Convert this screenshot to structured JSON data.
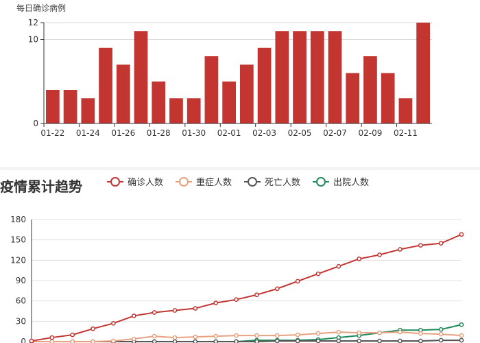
{
  "chart_data": [
    {
      "type": "bar",
      "title": "",
      "ylabel": "每日确诊病例",
      "xlabel": "",
      "color": "#c23531",
      "categories": [
        "01-22",
        "01-23",
        "01-24",
        "01-25",
        "01-26",
        "01-27",
        "01-28",
        "01-29",
        "01-30",
        "01-31",
        "02-01",
        "02-02",
        "02-03",
        "02-04",
        "02-05",
        "02-06",
        "02-07",
        "02-08",
        "02-09",
        "02-10",
        "02-11",
        "02-12"
      ],
      "x_tick_labels": [
        "01-22",
        "01-24",
        "01-26",
        "01-28",
        "01-30",
        "02-01",
        "02-03",
        "02-05",
        "02-07",
        "02-09",
        "02-11"
      ],
      "values": [
        4,
        4,
        3,
        9,
        7,
        11,
        5,
        3,
        3,
        8,
        5,
        7,
        9,
        11,
        11,
        11,
        11,
        6,
        8,
        6,
        3,
        12
      ],
      "ylim": [
        0,
        12
      ],
      "y_tick_labels": [
        "0",
        "10",
        "12"
      ],
      "grid": true
    },
    {
      "type": "line",
      "title": "疫情累计趋势",
      "xlabel": "",
      "ylabel": "",
      "ylim": [
        0,
        180
      ],
      "y_ticks": [
        0,
        30,
        60,
        90,
        120,
        150,
        180
      ],
      "grid": true,
      "legend_position": "top",
      "series": [
        {
          "name": "确诊人数",
          "color": "#c23531",
          "values": [
            1,
            6,
            10,
            19,
            27,
            38,
            43,
            46,
            49,
            57,
            62,
            69,
            78,
            89,
            100,
            111,
            122,
            128,
            136,
            142,
            145,
            158
          ]
        },
        {
          "name": "重症人数",
          "color": "#e8a07f",
          "values": [
            0,
            0,
            0,
            0,
            1,
            4,
            8,
            6,
            7,
            8,
            9,
            9,
            9,
            10,
            12,
            14,
            13,
            13,
            14,
            12,
            11,
            9
          ]
        },
        {
          "name": "死亡人数",
          "color": "#555555",
          "values": [
            0,
            0,
            0,
            0,
            0,
            0,
            0,
            0,
            0,
            0,
            0,
            0,
            1,
            1,
            1,
            1,
            1,
            1,
            1,
            1,
            2,
            2
          ]
        },
        {
          "name": "出院人数",
          "color": "#1e8a5a",
          "values": [
            0,
            0,
            0,
            0,
            0,
            0,
            0,
            0,
            0,
            0,
            0,
            2,
            2,
            2,
            3,
            6,
            9,
            13,
            17,
            17,
            18,
            25
          ]
        }
      ]
    }
  ]
}
